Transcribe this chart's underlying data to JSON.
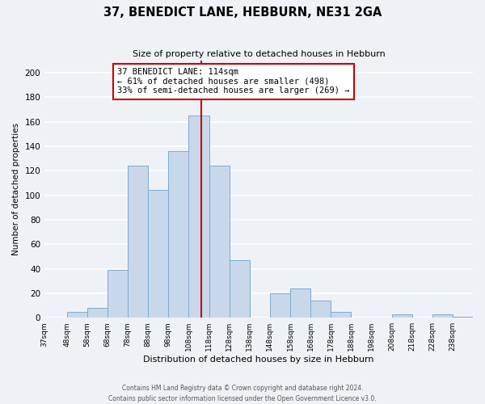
{
  "title": "37, BENEDICT LANE, HEBBURN, NE31 2GA",
  "subtitle": "Size of property relative to detached houses in Hebburn",
  "xlabel": "Distribution of detached houses by size in Hebburn",
  "ylabel": "Number of detached properties",
  "bar_color": "#c8d8ea",
  "bar_edge_color": "#7aaacf",
  "background_color": "#eef2f7",
  "grid_color": "white",
  "bin_labels": [
    "37sqm",
    "48sqm",
    "58sqm",
    "68sqm",
    "78sqm",
    "88sqm",
    "98sqm",
    "108sqm",
    "118sqm",
    "128sqm",
    "138sqm",
    "148sqm",
    "158sqm",
    "168sqm",
    "178sqm",
    "188sqm",
    "198sqm",
    "208sqm",
    "218sqm",
    "228sqm",
    "238sqm"
  ],
  "bin_edges": [
    37,
    48,
    58,
    68,
    78,
    88,
    98,
    108,
    118,
    128,
    138,
    148,
    158,
    168,
    178,
    188,
    198,
    208,
    218,
    228,
    238,
    248
  ],
  "counts": [
    0,
    5,
    8,
    39,
    124,
    104,
    136,
    165,
    124,
    47,
    0,
    20,
    24,
    14,
    5,
    0,
    0,
    3,
    0,
    3,
    1
  ],
  "property_line_x": 114,
  "property_line_color": "#cc0000",
  "annotation_line1": "37 BENEDICT LANE: 114sqm",
  "annotation_line2": "← 61% of detached houses are smaller (498)",
  "annotation_line3": "33% of semi-detached houses are larger (269) →",
  "annotation_box_color": "white",
  "annotation_box_edge": "#cc0000",
  "ylim": [
    0,
    210
  ],
  "yticks": [
    0,
    20,
    40,
    60,
    80,
    100,
    120,
    140,
    160,
    180,
    200
  ],
  "footer_line1": "Contains HM Land Registry data © Crown copyright and database right 2024.",
  "footer_line2": "Contains public sector information licensed under the Open Government Licence v3.0."
}
